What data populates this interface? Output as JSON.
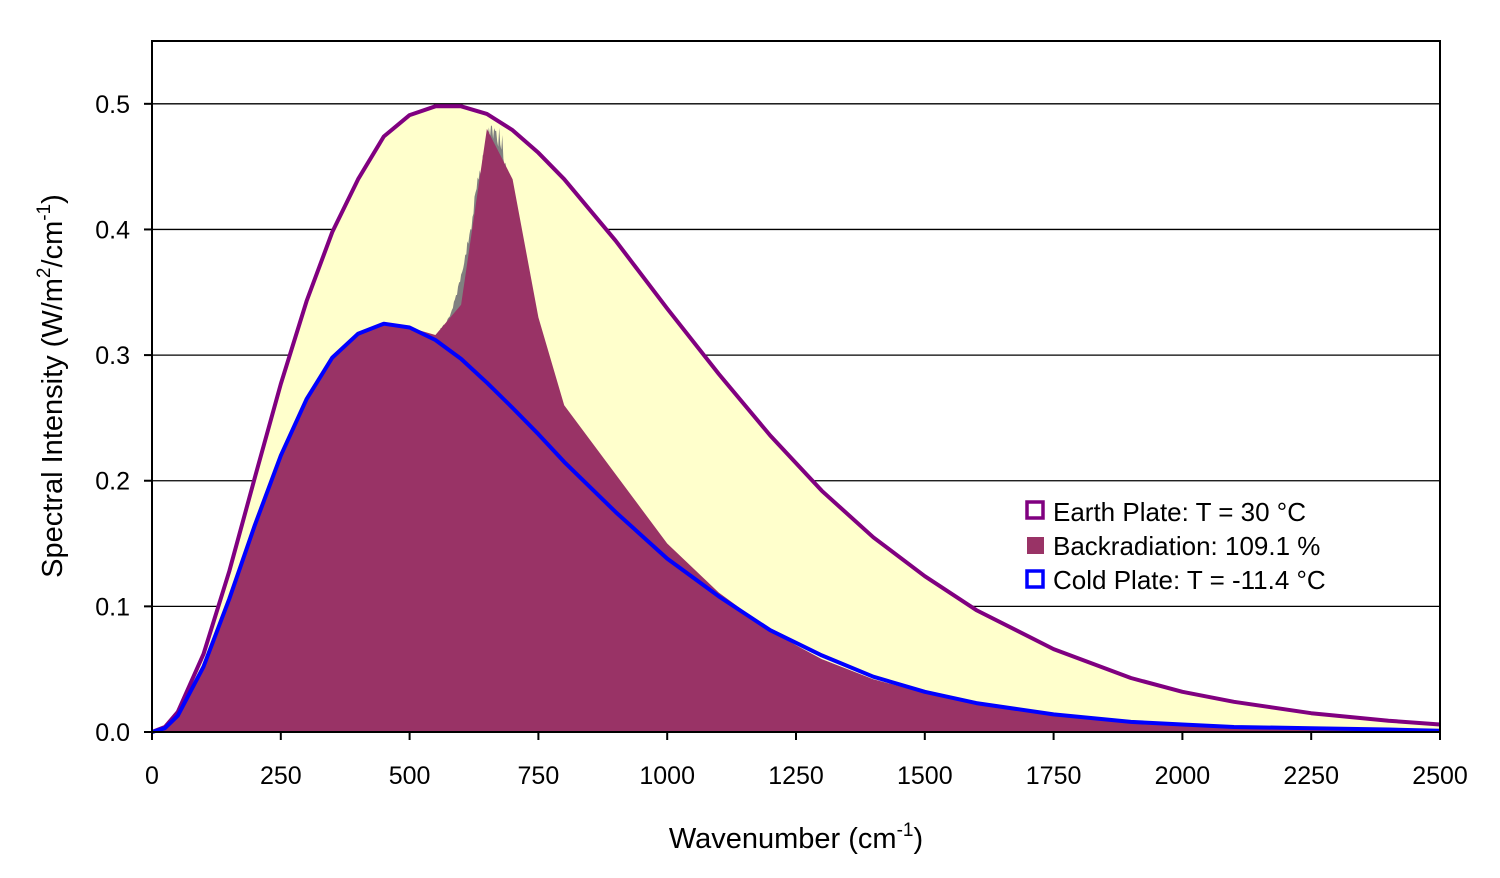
{
  "chart_data": {
    "type": "area",
    "title": "",
    "xlabel": "Wavenumber (cm",
    "xlabel_sup": "-1",
    "xlabel_tail": ")",
    "ylabel_parts": [
      "Spectral Intensity (W/m",
      "2",
      "/cm",
      "-1",
      ")"
    ],
    "xlim": [
      0,
      2500
    ],
    "ylim": [
      0,
      0.55
    ],
    "x_ticks": [
      0,
      250,
      500,
      750,
      1000,
      1250,
      1500,
      1750,
      2000,
      2250,
      2500
    ],
    "x_tick_labels": [
      "0",
      "250",
      "500",
      "750",
      "1000",
      "1250",
      "1500",
      "1750",
      "2000",
      "2250",
      "2500"
    ],
    "y_ticks": [
      0.0,
      0.1,
      0.2,
      0.3,
      0.4,
      0.5
    ],
    "y_tick_labels": [
      "0.0",
      "0.1",
      "0.2",
      "0.3",
      "0.4",
      "0.5"
    ],
    "grid": "horizontal",
    "legend_position": "right",
    "colors": {
      "earth_plate": "#800080",
      "earth_fill": "#ffffcc",
      "backradiation": "#993366",
      "cold_plate": "#0000ff",
      "greenhouse_band": "#808080"
    },
    "x": [
      0,
      25,
      50,
      100,
      150,
      200,
      250,
      300,
      350,
      400,
      450,
      500,
      550,
      600,
      650,
      700,
      750,
      800,
      900,
      1000,
      1100,
      1200,
      1250,
      1300,
      1400,
      1500,
      1600,
      1750,
      1900,
      2000,
      2100,
      2250,
      2400,
      2500
    ],
    "series": [
      {
        "name": "Earth Plate: T = 30 °C",
        "style": "line",
        "values": [
          0.0,
          0.004,
          0.016,
          0.062,
          0.128,
          0.203,
          0.277,
          0.343,
          0.398,
          0.44,
          0.474,
          0.491,
          0.498,
          0.498,
          0.492,
          0.479,
          0.461,
          0.44,
          0.391,
          0.337,
          0.285,
          0.236,
          0.214,
          0.192,
          0.155,
          0.124,
          0.097,
          0.066,
          0.043,
          0.032,
          0.024,
          0.015,
          0.009,
          0.006
        ]
      },
      {
        "name": "Backradiation: 109.1 %",
        "style": "filled area",
        "values": [
          0.0,
          0.003,
          0.013,
          0.052,
          0.106,
          0.165,
          0.22,
          0.265,
          0.298,
          0.317,
          0.325,
          0.322,
          0.316,
          0.34,
          0.48,
          0.44,
          0.33,
          0.26,
          0.205,
          0.15,
          0.111,
          0.081,
          0.069,
          0.058,
          0.042,
          0.031,
          0.022,
          0.013,
          0.007,
          0.005,
          0.004,
          0.003,
          0.002,
          0.002
        ]
      },
      {
        "name": "Cold Plate: T = -11.4 °C",
        "style": "line",
        "values": [
          0.0,
          0.003,
          0.013,
          0.052,
          0.106,
          0.165,
          0.22,
          0.265,
          0.298,
          0.317,
          0.325,
          0.322,
          0.312,
          0.297,
          0.278,
          0.258,
          0.237,
          0.215,
          0.175,
          0.138,
          0.108,
          0.081,
          0.071,
          0.061,
          0.044,
          0.032,
          0.023,
          0.014,
          0.008,
          0.006,
          0.004,
          0.003,
          0.002,
          0.001
        ]
      }
    ]
  }
}
